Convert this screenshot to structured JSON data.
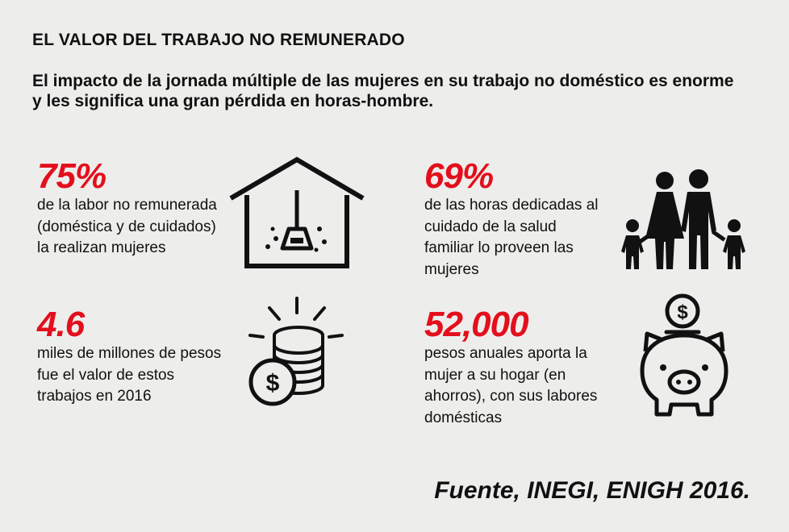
{
  "header": {
    "title": "EL VALOR DEL TRABAJO NO REMUNERADO",
    "subtitle": "El impacto de la jornada múltiple de las mujeres en su trabajo no doméstico es enorme y les significa una gran pérdida en horas-hombre."
  },
  "stats": [
    {
      "value": "75%",
      "description": "de la labor no remunerada (doméstica y de cuidados) la realizan mujeres",
      "icon": "house-broom-icon"
    },
    {
      "value": "69%",
      "description": "de las horas dedicadas al cuidado de la salud familiar lo proveen las mujeres",
      "icon": "family-icon"
    },
    {
      "value": "4.6",
      "description": "miles de millones de pesos fue el valor de estos trabajos en 2016",
      "icon": "coin-stack-icon"
    },
    {
      "value": "52,000",
      "description": "pesos anuales aporta la mujer a su hogar (en ahorros), con sus labores domésticas",
      "icon": "piggy-bank-icon"
    }
  ],
  "footer": {
    "source": "Fuente, INEGI, ENIGH 2016."
  },
  "colors": {
    "background": "#ededeb",
    "accent": "#e30f1c",
    "text": "#111111"
  }
}
